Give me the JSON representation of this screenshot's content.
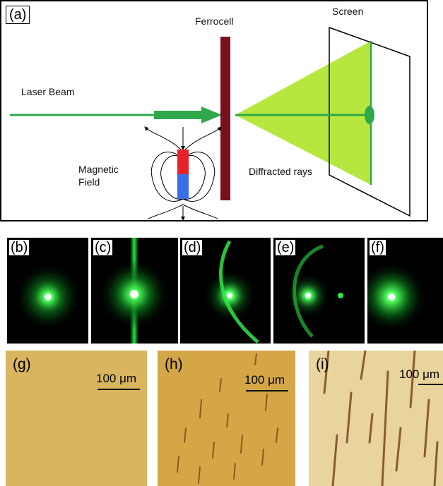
{
  "panel_a": {
    "label": "(a)",
    "laser_beam": "Laser Beam",
    "ferrocell": "Ferrocell",
    "screen": "Screen",
    "magnetic_field_line1": "Magnetic",
    "magnetic_field_line2": "Field",
    "diffracted_rays": "Diffracted rays"
  },
  "photos": [
    {
      "label": "(b)"
    },
    {
      "label": "(c)"
    },
    {
      "label": "(d)"
    },
    {
      "label": "(e)"
    },
    {
      "label": "(f)"
    }
  ],
  "micrographs": [
    {
      "label": "(g)",
      "scale": "100 μm"
    },
    {
      "label": "(h)",
      "scale": "100 μm"
    },
    {
      "label": "(i)",
      "scale": "100 μm"
    }
  ],
  "colors": {
    "beam": "#2ea84a",
    "cone": "#a8e31c",
    "ferrocell": "#7a0f1e",
    "magnet_north": "#e8202a",
    "magnet_south": "#3a6ee8",
    "glow": "#2aff4a",
    "micro_bg": "#d9b45a"
  }
}
